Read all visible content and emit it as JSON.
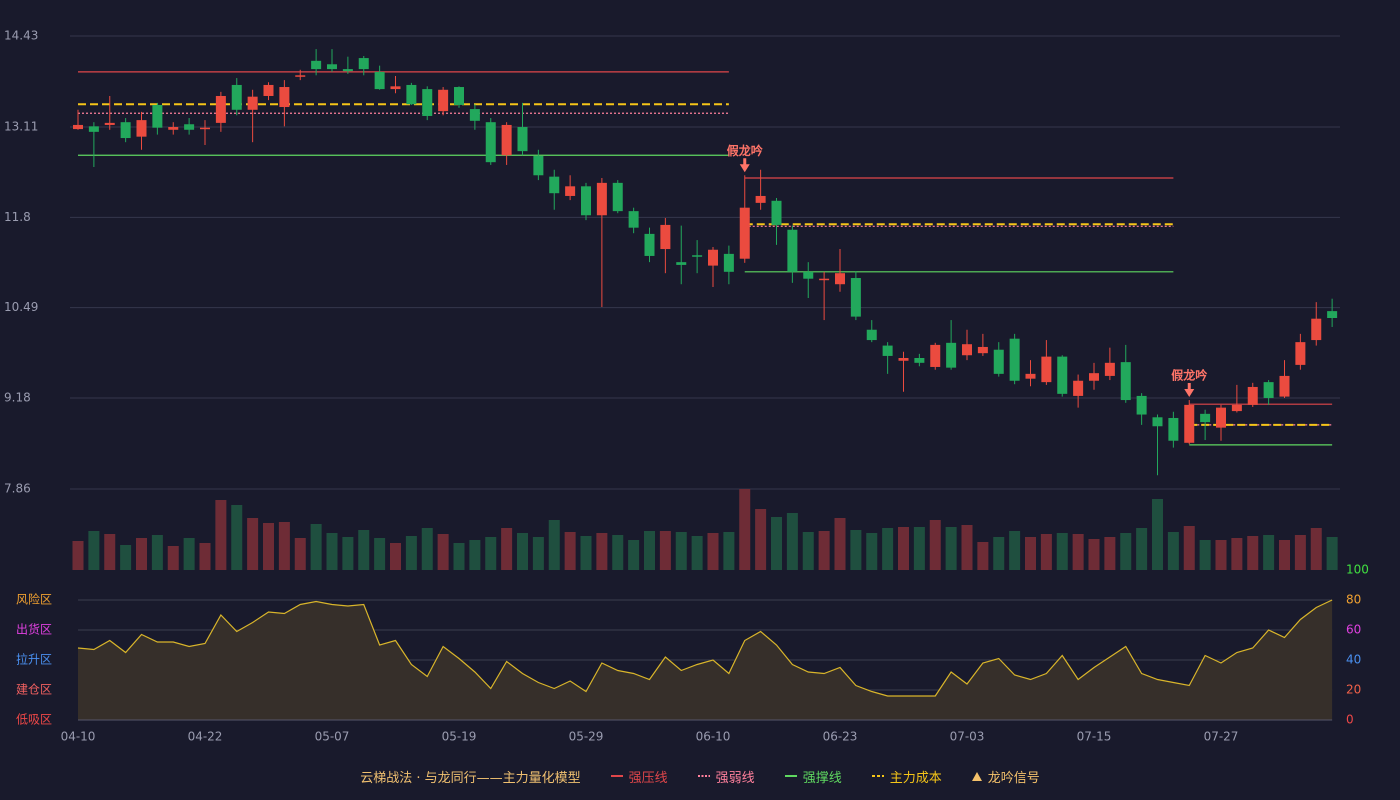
{
  "chart_data": {
    "type": "candlestick",
    "categories": [
      "04-10",
      null,
      null,
      null,
      null,
      null,
      null,
      null,
      "04-22",
      null,
      null,
      null,
      null,
      null,
      null,
      null,
      "05-07",
      null,
      null,
      null,
      null,
      null,
      null,
      null,
      "05-19",
      null,
      null,
      null,
      null,
      null,
      null,
      null,
      "05-29",
      null,
      null,
      null,
      null,
      null,
      null,
      null,
      "06-10",
      null,
      null,
      null,
      null,
      null,
      null,
      null,
      "06-23",
      null,
      null,
      null,
      null,
      null,
      null,
      null,
      "07-03",
      null,
      null,
      null,
      null,
      null,
      null,
      null,
      "07-15",
      null,
      null,
      null,
      null,
      null,
      null,
      null,
      "07-27",
      null,
      null,
      null,
      null,
      null,
      null,
      null
    ],
    "candles": [
      [
        13.08,
        13.36,
        13.07,
        13.14
      ],
      [
        13.12,
        13.18,
        12.53,
        13.04
      ],
      [
        13.14,
        13.56,
        13.07,
        13.17
      ],
      [
        13.18,
        13.24,
        12.89,
        12.95
      ],
      [
        12.97,
        13.33,
        12.78,
        13.21
      ],
      [
        13.43,
        13.46,
        13.0,
        13.1
      ],
      [
        13.07,
        13.18,
        13.0,
        13.11
      ],
      [
        13.15,
        13.24,
        13.0,
        13.07
      ],
      [
        13.08,
        13.21,
        12.85,
        13.1
      ],
      [
        13.17,
        13.62,
        13.04,
        13.56
      ],
      [
        13.72,
        13.82,
        13.28,
        13.36
      ],
      [
        13.36,
        13.65,
        12.89,
        13.55
      ],
      [
        13.56,
        13.76,
        13.5,
        13.72
      ],
      [
        13.4,
        13.79,
        13.12,
        13.69
      ],
      [
        13.84,
        13.94,
        13.79,
        13.86
      ],
      [
        14.07,
        14.24,
        13.86,
        13.95
      ],
      [
        14.02,
        14.24,
        13.91,
        13.95
      ],
      [
        13.95,
        14.13,
        13.88,
        13.92
      ],
      [
        14.11,
        14.14,
        13.86,
        13.95
      ],
      [
        13.91,
        14.0,
        13.65,
        13.66
      ],
      [
        13.66,
        13.85,
        13.6,
        13.7
      ],
      [
        13.72,
        13.75,
        13.43,
        13.44
      ],
      [
        13.66,
        13.7,
        13.21,
        13.27
      ],
      [
        13.34,
        13.69,
        13.28,
        13.65
      ],
      [
        13.69,
        13.7,
        13.39,
        13.43
      ],
      [
        13.37,
        13.44,
        13.07,
        13.2
      ],
      [
        13.18,
        13.24,
        12.56,
        12.6
      ],
      [
        12.7,
        13.18,
        12.56,
        13.14
      ],
      [
        13.11,
        13.46,
        12.7,
        12.76
      ],
      [
        12.69,
        12.78,
        12.34,
        12.41
      ],
      [
        12.39,
        12.49,
        11.91,
        12.15
      ],
      [
        12.11,
        12.41,
        12.05,
        12.25
      ],
      [
        12.25,
        12.3,
        11.76,
        11.83
      ],
      [
        11.83,
        12.37,
        10.5,
        12.3
      ],
      [
        12.3,
        12.34,
        11.86,
        11.89
      ],
      [
        11.89,
        11.94,
        11.57,
        11.65
      ],
      [
        11.56,
        11.65,
        11.15,
        11.24
      ],
      [
        11.34,
        11.79,
        10.99,
        11.69
      ],
      [
        11.15,
        11.68,
        10.83,
        11.11
      ],
      [
        11.25,
        11.47,
        10.99,
        11.24
      ],
      [
        11.1,
        11.37,
        10.79,
        11.33
      ],
      [
        11.27,
        11.39,
        10.83,
        11.01
      ],
      [
        11.2,
        12.41,
        11.14,
        11.94
      ],
      [
        12.01,
        12.49,
        11.91,
        12.11
      ],
      [
        12.04,
        12.08,
        11.4,
        11.69
      ],
      [
        11.62,
        11.68,
        10.85,
        11.01
      ],
      [
        11.01,
        11.15,
        10.63,
        10.91
      ],
      [
        10.89,
        11.01,
        10.31,
        10.91
      ],
      [
        10.83,
        11.34,
        10.72,
        10.99
      ],
      [
        10.92,
        11.02,
        10.31,
        10.36
      ],
      [
        10.17,
        10.31,
        9.99,
        10.02
      ],
      [
        9.94,
        9.99,
        9.53,
        9.79
      ],
      [
        9.72,
        9.85,
        9.27,
        9.76
      ],
      [
        9.76,
        9.82,
        9.64,
        9.69
      ],
      [
        9.63,
        9.98,
        9.59,
        9.95
      ],
      [
        9.98,
        10.31,
        9.59,
        9.62
      ],
      [
        9.8,
        10.17,
        9.73,
        9.96
      ],
      [
        9.83,
        10.11,
        9.79,
        9.92
      ],
      [
        9.88,
        9.99,
        9.49,
        9.53
      ],
      [
        10.04,
        10.11,
        9.38,
        9.43
      ],
      [
        9.46,
        9.73,
        9.35,
        9.53
      ],
      [
        9.41,
        10.02,
        9.37,
        9.78
      ],
      [
        9.78,
        9.8,
        9.2,
        9.24
      ],
      [
        9.21,
        9.52,
        9.04,
        9.43
      ],
      [
        9.43,
        9.69,
        9.3,
        9.54
      ],
      [
        9.5,
        9.91,
        9.44,
        9.69
      ],
      [
        9.7,
        9.95,
        9.11,
        9.15
      ],
      [
        9.21,
        9.25,
        8.79,
        8.94
      ],
      [
        8.9,
        8.94,
        8.06,
        8.77
      ],
      [
        8.89,
        8.98,
        8.46,
        8.56
      ],
      [
        8.53,
        9.15,
        8.51,
        9.08
      ],
      [
        8.95,
        9.01,
        8.57,
        8.83
      ],
      [
        8.75,
        9.08,
        8.56,
        9.04
      ],
      [
        8.99,
        9.37,
        8.97,
        9.08
      ],
      [
        9.08,
        9.4,
        9.05,
        9.34
      ],
      [
        9.41,
        9.44,
        9.08,
        9.18
      ],
      [
        9.2,
        9.73,
        9.18,
        9.5
      ],
      [
        9.66,
        10.11,
        9.59,
        9.99
      ],
      [
        10.02,
        10.57,
        9.94,
        10.33
      ],
      [
        10.44,
        10.62,
        10.21,
        10.34
      ]
    ],
    "volume": [
      29,
      39,
      36,
      25,
      32,
      35,
      24,
      32,
      27,
      70,
      65,
      52,
      47,
      48,
      32,
      46,
      37,
      33,
      40,
      32,
      27,
      34,
      42,
      36,
      27,
      30,
      33,
      42,
      37,
      33,
      50,
      38,
      34,
      37,
      35,
      30,
      39,
      39,
      38,
      34,
      37,
      38,
      81,
      61,
      53,
      57,
      38,
      39,
      52,
      40,
      37,
      42,
      43,
      43,
      50,
      43,
      45,
      28,
      33,
      39,
      33,
      36,
      37,
      36,
      31,
      33,
      37,
      42,
      71,
      38,
      44,
      30,
      30,
      32,
      34,
      35,
      30,
      35,
      42,
      33
    ],
    "ylim": [
      7.86,
      14.43
    ],
    "yticks": [
      7.86,
      9.18,
      10.49,
      11.8,
      13.11,
      14.43
    ],
    "grid": true,
    "up_color": "#eb4b3f",
    "down_color": "#22a85c",
    "volume_up_color": "#6e2c36",
    "volume_down_color": "#1f4f3f",
    "levels": {
      "segments": [
        [
          0,
          41
        ],
        [
          42,
          69
        ],
        [
          70,
          79
        ]
      ],
      "series": [
        {
          "name": "强压线",
          "color": "#e0464a",
          "dash": "solid",
          "values": [
            13.91,
            12.37,
            9.09
          ]
        },
        {
          "name": "强弱线",
          "color": "#ff809c",
          "dash": "dotted",
          "values": [
            13.31,
            11.67,
            8.79
          ]
        },
        {
          "name": "强撑线",
          "color": "#5fd860",
          "dash": "solid",
          "values": [
            12.7,
            11.01,
            8.5
          ]
        },
        {
          "name": "主力成本",
          "color": "#f5c518",
          "dash": "dashed",
          "values": [
            13.44,
            11.7,
            8.79
          ]
        }
      ]
    },
    "signals": {
      "name": "龙吟信号",
      "color": "#f5c26b",
      "label_color": "#ff7468",
      "points": [
        {
          "index": 42,
          "label": "假龙吟"
        },
        {
          "index": 70,
          "label": "假龙吟"
        }
      ]
    },
    "indicator": {
      "values": [
        48,
        47,
        53,
        45,
        57,
        52,
        52,
        49,
        51,
        70,
        59,
        65,
        72,
        71,
        77,
        79,
        77,
        76,
        77,
        50,
        53,
        37,
        29,
        49,
        41,
        32,
        21,
        39,
        31,
        25,
        21,
        26,
        19,
        38,
        33,
        31,
        27,
        42,
        33,
        37,
        40,
        31,
        53,
        59,
        50,
        37,
        32,
        31,
        35,
        23,
        19,
        16,
        16,
        16,
        16,
        32,
        24,
        38,
        41,
        30,
        27,
        31,
        43,
        27,
        35,
        42,
        49,
        31,
        27,
        25,
        23,
        43,
        38,
        45,
        48,
        60,
        55,
        67,
        75,
        80
      ],
      "ylim": [
        0,
        100
      ],
      "yticks": [
        0,
        20,
        40,
        60,
        80,
        100
      ],
      "tick_colors": [
        "#f04848",
        "#f06048",
        "#4a90f0",
        "#e040e0",
        "#f0a030",
        "#40e040"
      ],
      "zones": [
        {
          "label": "低吸区",
          "color": "#f04848"
        },
        {
          "label": "建仓区",
          "color": "#f06060"
        },
        {
          "label": "拉升区",
          "color": "#4a90f0"
        },
        {
          "label": "出货区",
          "color": "#e040e0"
        },
        {
          "label": "风险区",
          "color": "#f0a030"
        }
      ],
      "line_color": "#d9b52a",
      "fill_color": "#362f2a"
    },
    "legend_title": "云梯战法 · 与龙同行——主力量化模型",
    "legend_title_color": "#f0c070"
  }
}
